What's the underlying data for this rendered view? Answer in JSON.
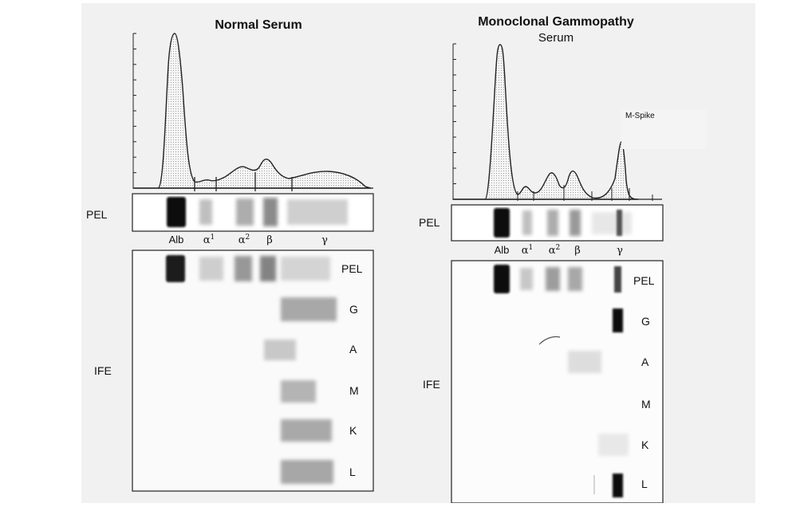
{
  "colors": {
    "background": "#f1f1f1",
    "ink": "#111111",
    "panel": "#ffffff"
  },
  "normal": {
    "title": "Normal Serum",
    "pel_label": "PEL",
    "ife_label": "IFE",
    "fractions": {
      "alb": "Alb",
      "a1_base": "α",
      "a1_sup": "1",
      "a2_base": "α",
      "a2_sup": "2",
      "beta": "β",
      "gamma": "γ"
    },
    "rows": [
      "PEL",
      "G",
      "A",
      "M",
      "K",
      "L"
    ]
  },
  "mono": {
    "title_line1": "Monoclonal Gammopathy",
    "title_line2": "Serum",
    "annotation": "M-Spike",
    "pel_label": "PEL",
    "ife_label": "IFE",
    "fractions": {
      "alb": "Alb",
      "a1_base": "α",
      "a1_sup": "1",
      "a2_base": "α",
      "a2_sup": "2",
      "beta": "β",
      "gamma": "γ"
    },
    "rows": [
      "PEL",
      "G",
      "A",
      "M",
      "K",
      "L"
    ]
  }
}
